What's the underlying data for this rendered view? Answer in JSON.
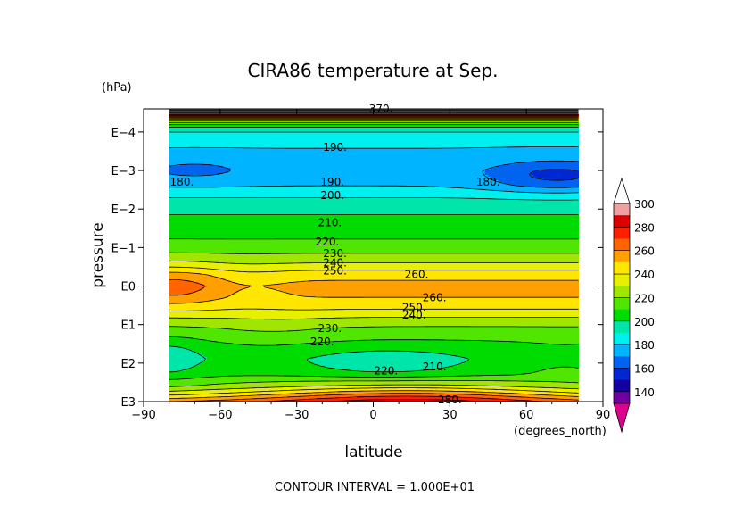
{
  "chart_data": {
    "type": "heatmap",
    "title": "CIRA86 temperature at Sep.",
    "xlabel": "latitude",
    "ylabel": "pressure",
    "x_unit": "(degrees_north)",
    "y_unit": "(hPa)",
    "xlim": [
      -90,
      90
    ],
    "x_ticks": [
      "−90",
      "−60",
      "−30",
      "0",
      "30",
      "60",
      "90"
    ],
    "x_tick_values": [
      -90,
      -60,
      -30,
      0,
      30,
      60,
      90
    ],
    "ylim_exponent": [
      -4.6,
      3
    ],
    "y_scale": "log",
    "y_ticks": [
      "E−4",
      "E−3",
      "E−2",
      "E−1",
      "E0",
      "E1",
      "E2",
      "E3"
    ],
    "y_tick_exponents": [
      -4,
      -3,
      -2,
      -1,
      0,
      1,
      2,
      3
    ],
    "data_lat_range": [
      -80,
      80
    ],
    "contour_interval_text": "CONTOUR INTERVAL = 1.000E+01",
    "colorbar": {
      "labels": [
        "300",
        "280",
        "260",
        "240",
        "220",
        "200",
        "180",
        "160",
        "140"
      ],
      "levels": [
        130,
        140,
        150,
        160,
        170,
        180,
        190,
        200,
        210,
        220,
        230,
        240,
        250,
        260,
        270,
        280,
        290,
        300,
        310
      ],
      "colors": [
        "#e00090",
        "#7000a0",
        "#1400a0",
        "#0028d2",
        "#0064f0",
        "#00b4ff",
        "#00f0f0",
        "#00e6aa",
        "#00dc00",
        "#50e600",
        "#a0e600",
        "#e6f000",
        "#ffe600",
        "#ffa000",
        "#ff6400",
        "#ff1e00",
        "#dc0000",
        "#f0a0a0",
        "#ffffff"
      ]
    },
    "contour_labels": [
      {
        "text": "370.",
        "lat": 3,
        "p_exp": -4.6
      },
      {
        "text": "190.",
        "lat": -15,
        "p_exp": -3.6
      },
      {
        "text": "180.",
        "lat": -75,
        "p_exp": -2.7
      },
      {
        "text": "190.",
        "lat": -16,
        "p_exp": -2.7
      },
      {
        "text": "180.",
        "lat": 45,
        "p_exp": -2.7
      },
      {
        "text": "200.",
        "lat": -16,
        "p_exp": -2.35
      },
      {
        "text": "210.",
        "lat": -17,
        "p_exp": -1.65
      },
      {
        "text": "220.",
        "lat": -18,
        "p_exp": -1.15
      },
      {
        "text": "230.",
        "lat": -15,
        "p_exp": -0.85
      },
      {
        "text": "240.",
        "lat": -15,
        "p_exp": -0.6
      },
      {
        "text": "250.",
        "lat": -15,
        "p_exp": -0.4
      },
      {
        "text": "260.",
        "lat": 17,
        "p_exp": -0.3
      },
      {
        "text": "260.",
        "lat": 24,
        "p_exp": 0.3
      },
      {
        "text": "250.",
        "lat": 16,
        "p_exp": 0.55
      },
      {
        "text": "240.",
        "lat": 16,
        "p_exp": 0.75
      },
      {
        "text": "230.",
        "lat": -17,
        "p_exp": 1.1
      },
      {
        "text": "220.",
        "lat": -20,
        "p_exp": 1.45
      },
      {
        "text": "220.",
        "lat": 5,
        "p_exp": 2.2
      },
      {
        "text": "210.",
        "lat": 24,
        "p_exp": 2.1
      },
      {
        "text": "280.",
        "lat": 30,
        "p_exp": 2.95
      }
    ]
  }
}
